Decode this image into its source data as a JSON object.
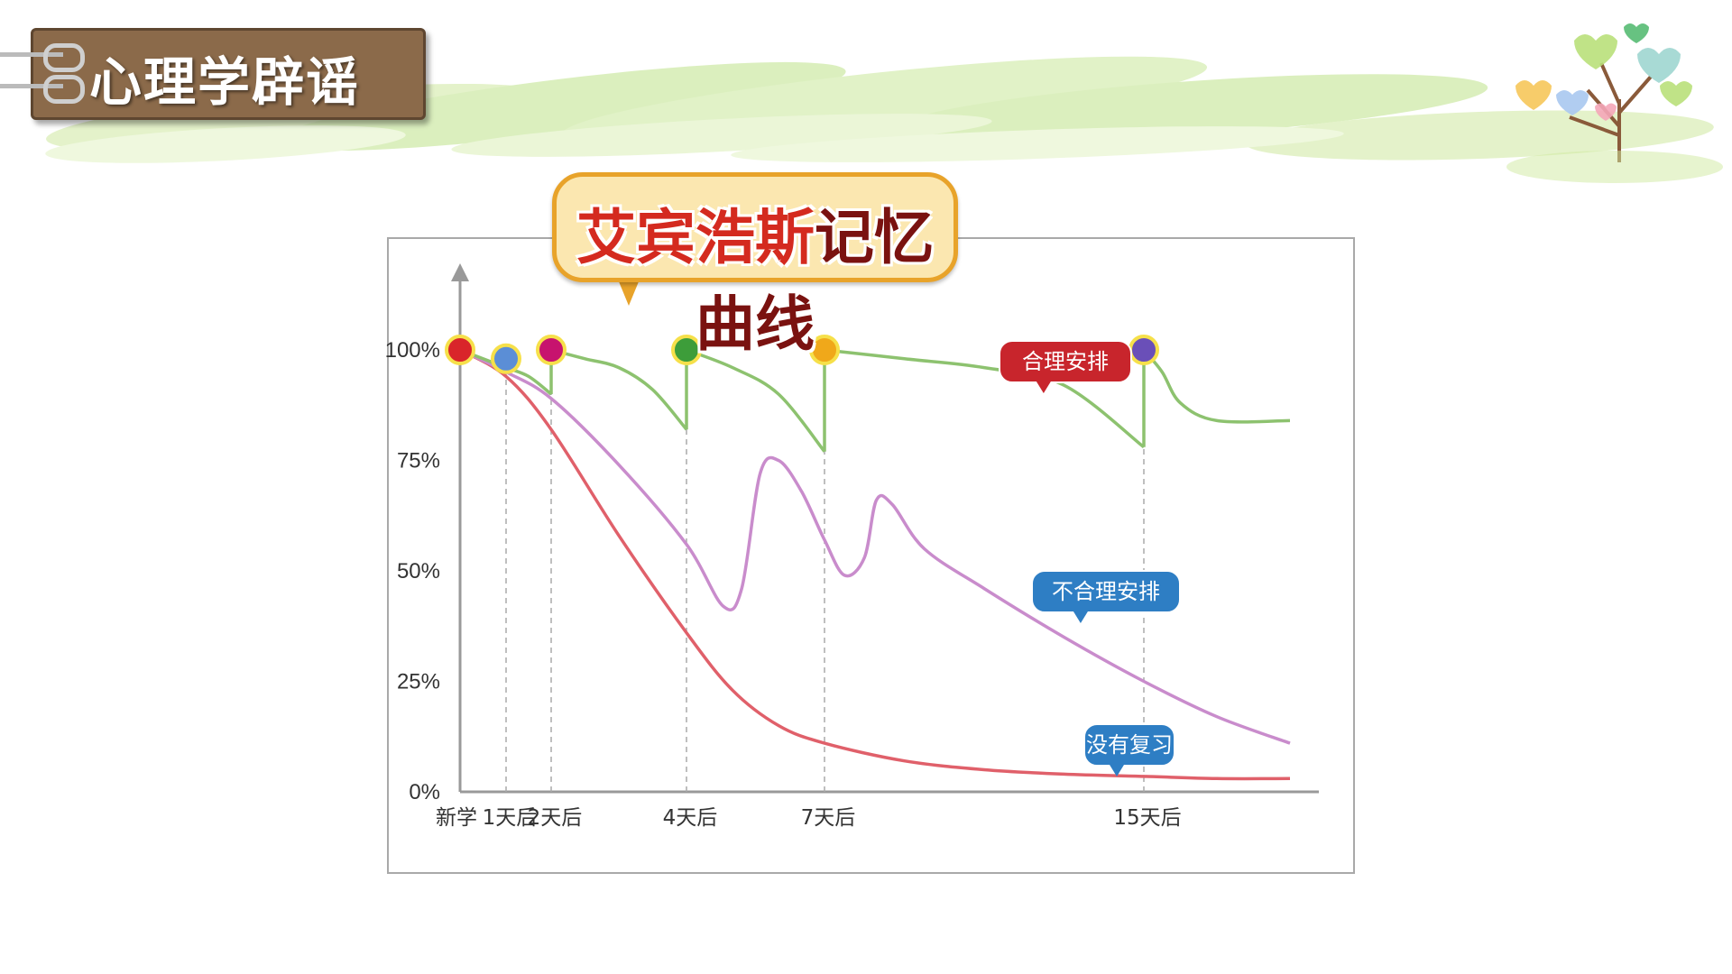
{
  "header": {
    "tag_label": "心理学辟谣"
  },
  "chart_data": {
    "type": "line",
    "title_part1": "艾宾浩斯",
    "title_part2": "记忆曲线",
    "title": "艾宾浩斯记忆曲线",
    "x_tick_labels": [
      "新学",
      "1天后",
      "2天后",
      "4天后",
      "7天后",
      "15天后"
    ],
    "x_ticks_days": [
      0,
      1,
      2,
      4,
      7,
      15
    ],
    "y_tick_labels": [
      "100%",
      "75%",
      "50%",
      "25%",
      "0%"
    ],
    "y_ticks": [
      100,
      75,
      50,
      25,
      0
    ],
    "ylim": [
      0,
      100
    ],
    "xlim": [
      0,
      19
    ],
    "series": [
      {
        "name": "合理安排",
        "color": "#8dc26f",
        "label_color": "#c8252c",
        "points": [
          [
            0,
            100
          ],
          [
            0.5,
            98
          ],
          [
            1,
            96
          ],
          [
            1.5,
            94
          ],
          [
            2,
            90
          ],
          [
            2,
            100
          ],
          [
            2.5,
            98
          ],
          [
            3,
            96
          ],
          [
            3.5,
            91
          ],
          [
            4,
            82
          ],
          [
            4,
            100
          ],
          [
            5,
            96
          ],
          [
            6,
            90
          ],
          [
            7,
            77
          ],
          [
            7,
            100
          ],
          [
            9,
            98
          ],
          [
            11,
            96
          ],
          [
            13,
            92
          ],
          [
            15,
            78
          ],
          [
            15,
            100
          ],
          [
            15.5,
            95
          ],
          [
            16,
            88
          ],
          [
            17,
            84
          ],
          [
            19,
            84
          ]
        ]
      },
      {
        "name": "不合理安排",
        "color": "#c98ccc",
        "label_color": "#2e7ec4",
        "points": [
          [
            0,
            100
          ],
          [
            1,
            95
          ],
          [
            2,
            89
          ],
          [
            3,
            74
          ],
          [
            4,
            56
          ],
          [
            4.8,
            42
          ],
          [
            5.2,
            46
          ],
          [
            5.6,
            72
          ],
          [
            6,
            75
          ],
          [
            6.5,
            68
          ],
          [
            7,
            57
          ],
          [
            7.5,
            49
          ],
          [
            8,
            53
          ],
          [
            8.3,
            66
          ],
          [
            8.7,
            65
          ],
          [
            9.5,
            55
          ],
          [
            11,
            46
          ],
          [
            13,
            35
          ],
          [
            15,
            25
          ],
          [
            17,
            17
          ],
          [
            19,
            11
          ]
        ]
      },
      {
        "name": "没有复习",
        "color": "#e0606a",
        "label_color": "#2e7ec4",
        "points": [
          [
            0,
            100
          ],
          [
            1,
            94
          ],
          [
            2,
            82
          ],
          [
            3,
            58
          ],
          [
            4,
            36
          ],
          [
            5,
            23
          ],
          [
            6,
            15
          ],
          [
            7,
            11
          ],
          [
            9,
            7
          ],
          [
            11,
            5
          ],
          [
            13,
            4
          ],
          [
            15,
            3.5
          ],
          [
            17,
            3
          ],
          [
            19,
            3
          ]
        ]
      }
    ],
    "review_markers": [
      {
        "day": 0,
        "value": 100,
        "color": "#d9252a"
      },
      {
        "day": 1,
        "value": 98,
        "color": "#5b8ed6"
      },
      {
        "day": 2,
        "value": 100,
        "color": "#c7136e"
      },
      {
        "day": 4,
        "value": 100,
        "color": "#3d9d3a"
      },
      {
        "day": 7,
        "value": 100,
        "color": "#f0a81a"
      },
      {
        "day": 15,
        "value": 100,
        "color": "#6a4fb8"
      }
    ],
    "legend_placement": "inline-labels",
    "grid": false
  }
}
